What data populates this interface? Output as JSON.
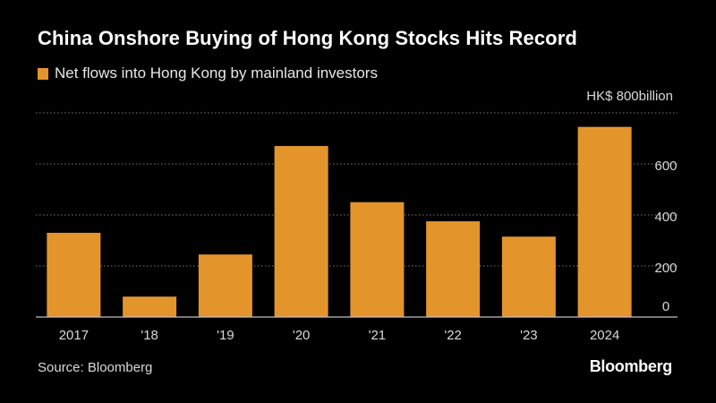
{
  "colors": {
    "background": "#000000",
    "bar": "#e3952c",
    "grid": "#7a7a7a",
    "text": "#ffffff",
    "muted": "#d9d9d9"
  },
  "chart_data": {
    "type": "bar",
    "title": "China Onshore Buying of Hong Kong Stocks Hits Record",
    "legend": [
      "Net flows into Hong Kong by mainland investors"
    ],
    "unit_label": "HK$ 800billion",
    "categories": [
      "2017",
      "'18",
      "'19",
      "'20",
      "'21",
      "'22",
      "'23",
      "2024"
    ],
    "values": [
      330,
      80,
      245,
      670,
      450,
      375,
      315,
      745
    ],
    "y_ticks": [
      0,
      200,
      400,
      600,
      800
    ],
    "y_tick_labels": [
      "0",
      "200",
      "400",
      "600"
    ],
    "ylim": [
      0,
      800
    ],
    "grid": true,
    "y_axis_side": "right",
    "xlabel": "",
    "ylabel": ""
  },
  "footer": {
    "source": "Source: Bloomberg",
    "brand": "Bloomberg"
  }
}
